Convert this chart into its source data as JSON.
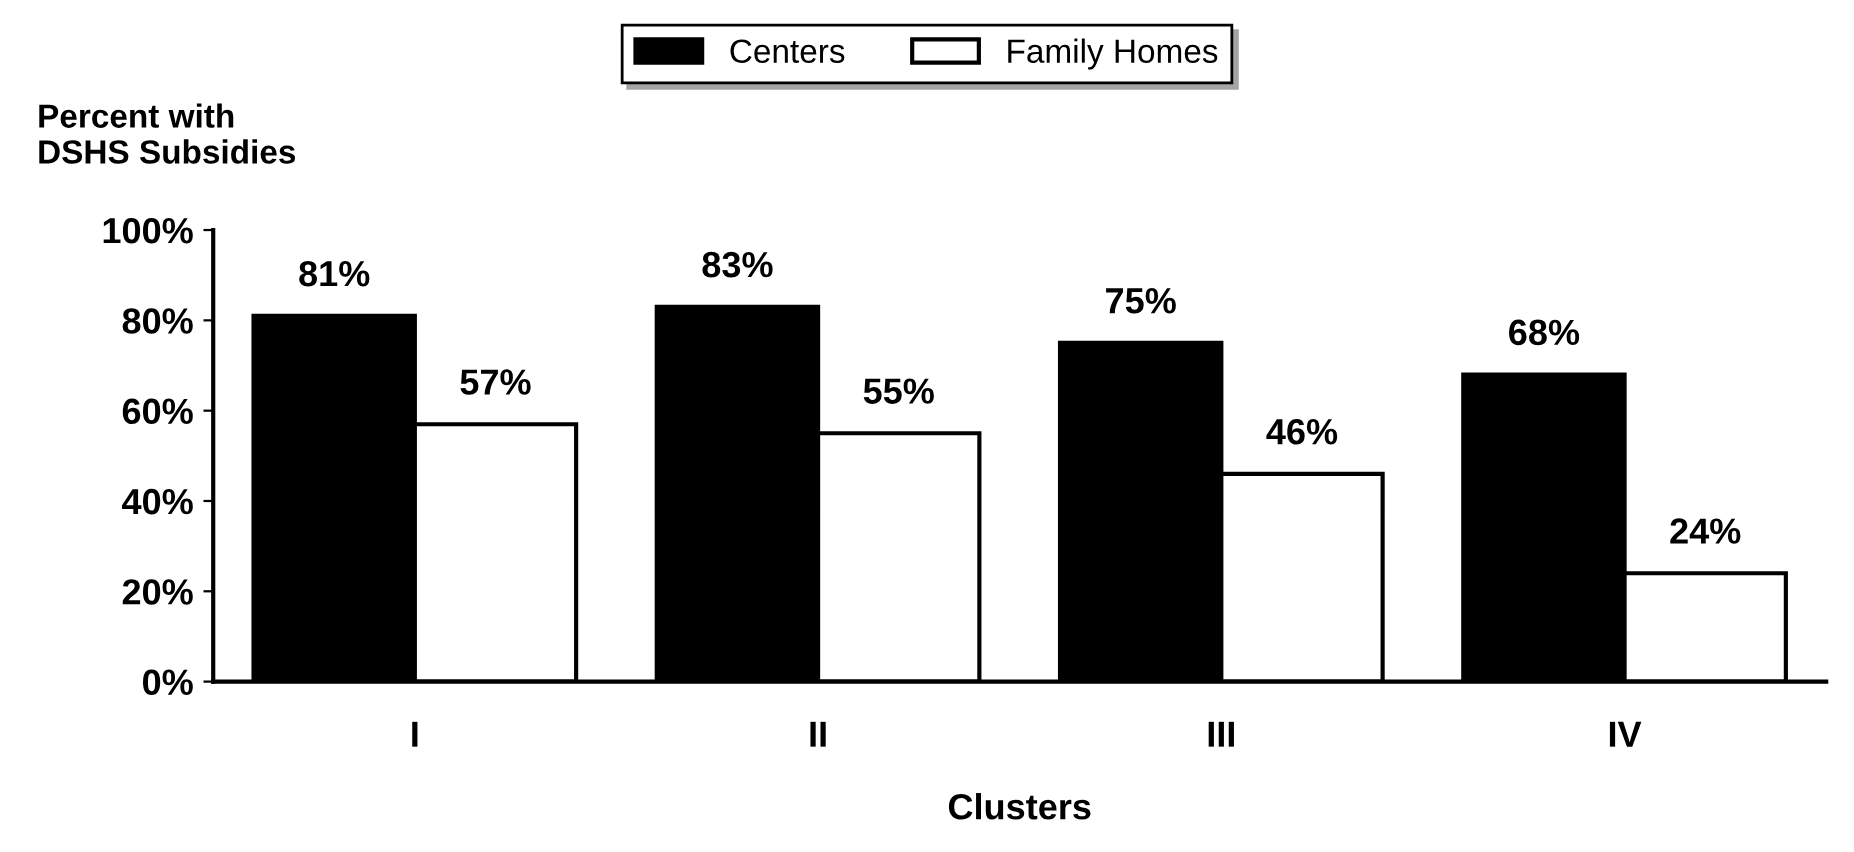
{
  "chart_data": {
    "type": "bar",
    "xlabel": "Clusters",
    "ylabel": "Percent with\nDSHS Subsidies",
    "categories": [
      "I",
      "II",
      "III",
      "IV"
    ],
    "series": [
      {
        "name": "Centers",
        "color": "#000000",
        "values": [
          81,
          83,
          75,
          68
        ],
        "value_labels": [
          "81%",
          "83%",
          "75%",
          "68%"
        ]
      },
      {
        "name": "Family Homes",
        "color": "#ffffff",
        "values": [
          57,
          55,
          46,
          24
        ],
        "value_labels": [
          "57%",
          "55%",
          "46%",
          "24%"
        ]
      }
    ],
    "ylim": [
      0,
      100
    ],
    "yticks": [
      {
        "value": 0,
        "label": "0%"
      },
      {
        "value": 20,
        "label": "20%"
      },
      {
        "value": 40,
        "label": "40%"
      },
      {
        "value": 60,
        "label": "60%"
      },
      {
        "value": 80,
        "label": "80%"
      },
      {
        "value": 100,
        "label": "100%"
      }
    ],
    "grid": false,
    "legend": "top"
  }
}
